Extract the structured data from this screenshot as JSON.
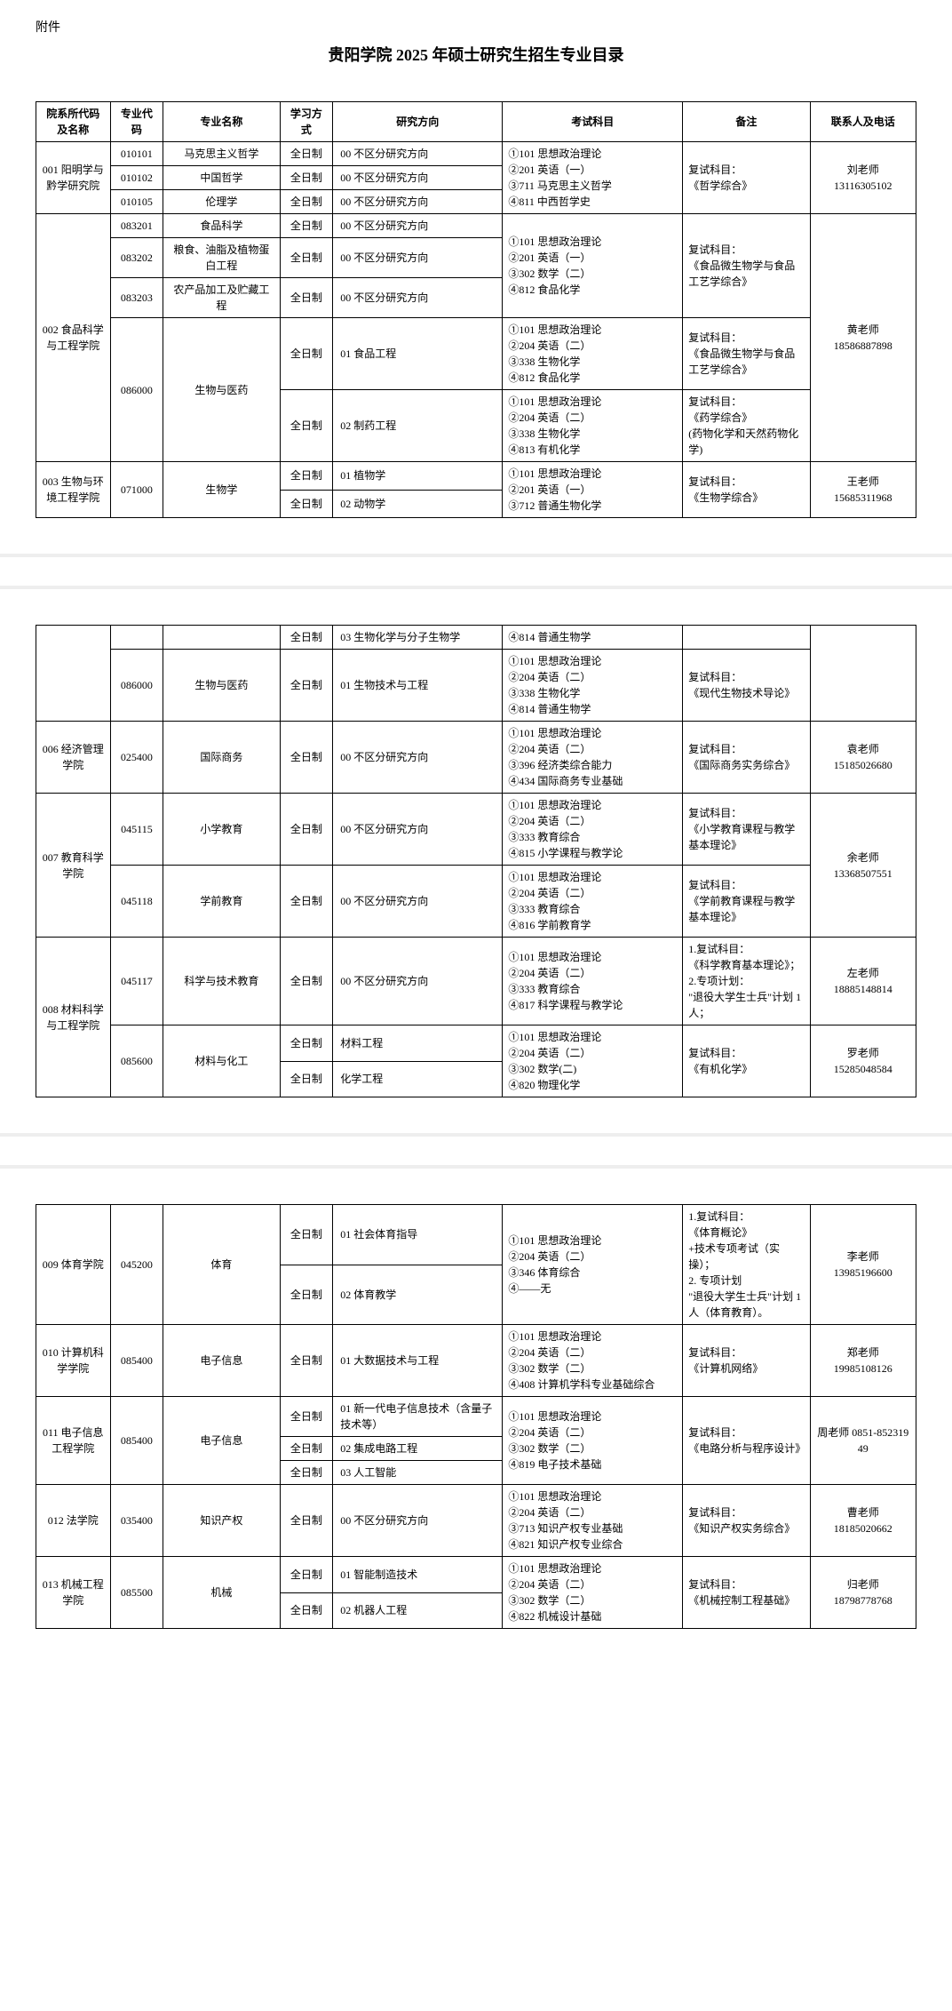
{
  "header": {
    "attachment": "附件",
    "title": "贵阳学院 2025 年硕士研究生招生专业目录"
  },
  "columns": {
    "dept": "院系所代码及名称",
    "code": "专业代码",
    "major": "专业名称",
    "mode": "学习方式",
    "direction": "研究方向",
    "exam": "考试科目",
    "note": "备注",
    "contact": "联系人及电话"
  },
  "mode_fulltime": "全日制",
  "dir_none": "00 不区分研究方向",
  "depts": {
    "d001": "001 阳明学与黔学研究院",
    "d002": "002 食品科学与工程学院",
    "d003": "003 生物与环境工程学院",
    "d006": "006  经济管理学院",
    "d007": "007 教育科学学院",
    "d008": "008 材料科学与工程学院",
    "d009": "009 体育学院",
    "d010": "010 计算机科学学院",
    "d011": "011 电子信息工程学院",
    "d012": "012 法学院",
    "d013": "013 机械工程学院"
  },
  "rows": {
    "r1": {
      "code": "010101",
      "major": "马克思主义哲学",
      "dir": "00 不区分研究方向"
    },
    "r2": {
      "code": "010102",
      "major": "中国哲学",
      "dir": "00 不区分研究方向"
    },
    "r3": {
      "code": "010105",
      "major": "伦理学",
      "dir": "00 不区分研究方向"
    },
    "r4": {
      "code": "083201",
      "major": "食品科学",
      "dir": "00 不区分研究方向"
    },
    "r5": {
      "code": "083202",
      "major": "粮食、油脂及植物蛋白工程",
      "dir": "00 不区分研究方向"
    },
    "r6": {
      "code": "083203",
      "major": "农产品加工及贮藏工程",
      "dir": "00 不区分研究方向"
    },
    "r7": {
      "code": "086000",
      "major": "生物与医药",
      "dir1": "01 食品工程",
      "dir2": "02 制药工程"
    },
    "r8": {
      "code": "071000",
      "major": "生物学",
      "dir1": "01 植物学",
      "dir2": "02 动物学",
      "dir3": "03 生物化学与分子生物学"
    },
    "r9": {
      "code": "086000",
      "major": "生物与医药",
      "dir": "01 生物技术与工程"
    },
    "r10": {
      "code": "025400",
      "major": "国际商务",
      "dir": "00 不区分研究方向"
    },
    "r11": {
      "code": "045115",
      "major": "小学教育",
      "dir": "00 不区分研究方向"
    },
    "r12": {
      "code": "045118",
      "major": "学前教育",
      "dir": "00 不区分研究方向"
    },
    "r13": {
      "code": "045117",
      "major": "科学与技术教育",
      "dir": "00 不区分研究方向"
    },
    "r14": {
      "code": "085600",
      "major": "材料与化工",
      "dir1": "材料工程",
      "dir2": "化学工程"
    },
    "r15": {
      "code": "045200",
      "major": "体育",
      "dir1": "01  社会体育指导",
      "dir2": "02 体育教学"
    },
    "r16": {
      "code": "085400",
      "major": "电子信息",
      "dir": "01 大数据技术与工程"
    },
    "r17": {
      "code": "085400",
      "major": "电子信息",
      "dir1": "01 新一代电子信息技术（含量子技术等）",
      "dir2": "02 集成电路工程",
      "dir3": "03 人工智能"
    },
    "r18": {
      "code": "035400",
      "major": "知识产权",
      "dir": "00 不区分研究方向"
    },
    "r19": {
      "code": "085500",
      "major": "机械",
      "dir1": "01 智能制造技术",
      "dir2": "02 机器人工程"
    }
  },
  "exams": {
    "e1": "①101 思想政治理论\n②201 英语（一）\n③711 马克思主义哲学\n④811 中西哲学史",
    "e2": "①101 思想政治理论\n②201 英语（一）\n③302 数学（二）\n④812 食品化学",
    "e3": "①101 思想政治理论\n②204 英语（二）\n③338 生物化学\n④812 食品化学",
    "e4": "①101 思想政治理论\n②204 英语（二）\n③338 生物化学\n④813 有机化学",
    "e5": "①101 思想政治理论\n②201 英语（一）\n③712 普通生物化学",
    "e5b": "④814 普通生物学",
    "e6": "①101 思想政治理论\n②204 英语（二）\n③338 生物化学\n④814 普通生物学",
    "e7": "①101 思想政治理论\n②204 英语（二）\n③396 经济类综合能力\n④434 国际商务专业基础",
    "e8": "①101 思想政治理论\n②204 英语（二）\n③333 教育综合\n④815 小学课程与教学论",
    "e9": "①101 思想政治理论\n②204 英语（二）\n③333 教育综合\n④816 学前教育学",
    "e10": "①101 思想政治理论\n②204 英语（二）\n③333 教育综合\n④817 科学课程与教学论",
    "e11": "①101 思想政治理论\n②204 英语（二）\n③302 数学(二)\n④820 物理化学",
    "e12": "①101 思想政治理论\n②204 英语（二）\n③346 体育综合\n④——无",
    "e13": "①101 思想政治理论\n②204 英语（二）\n③302 数学（二）\n④408 计算机学科专业基础综合",
    "e14": "①101 思想政治理论\n②204 英语（二）\n③302 数学（二）\n④819 电子技术基础",
    "e15": "①101 思想政治理论\n②204 英语（二）\n③713 知识产权专业基础\n④821 知识产权专业综合",
    "e16": "①101 思想政治理论\n②204 英语（二）\n③302 数学（二）\n④822 机械设计基础"
  },
  "notes": {
    "n1": "复试科目：\n《哲学综合》",
    "n2": "复试科目：\n《食品微生物学与食品工艺学综合》",
    "n3": "复试科目：\n《食品微生物学与食品工艺学综合》",
    "n4": "复试科目：\n《药学综合》\n(药物化学和天然药物化学)",
    "n5": "复试科目：\n《生物学综合》",
    "n6": "复试科目：\n《现代生物技术导论》",
    "n7": "复试科目：\n《国际商务实务综合》",
    "n8": "复试科目：\n《小学教育课程与教学基本理论》",
    "n9": "复试科目：\n《学前教育课程与教学基本理论》",
    "n10": "1.复试科目：\n《科学教育基本理论》；\n2.专项计划：\n\"退役大学生士兵\"计划 1 人；",
    "n11": "复试科目：\n《有机化学》",
    "n12": "1.复试科目：\n《体育概论》\n+技术专项考试（实操）；\n2. 专项计划\n\"退役大学生士兵\"计划 1 人（体育教育）。",
    "n13": "复试科目：\n《计算机网络》",
    "n14": "复试科目：\n《电路分析与程序设计》",
    "n15": "复试科目：\n《知识产权实务综合》",
    "n16": "复试科目：\n《机械控制工程基础》"
  },
  "contacts": {
    "c1": "刘老师\n13116305102",
    "c2": "黄老师\n18586887898",
    "c3": "王老师\n15685311968",
    "c4": "袁老师\n15185026680",
    "c5": "余老师\n13368507551",
    "c6": "左老师\n18885148814",
    "c7": "罗老师\n15285048584",
    "c8": "李老师\n13985196600",
    "c9": "郑老师\n19985108126",
    "c10": "周老师 0851-85231949",
    "c11": "曹老师\n18185020662",
    "c12": "归老师\n18798778768"
  }
}
